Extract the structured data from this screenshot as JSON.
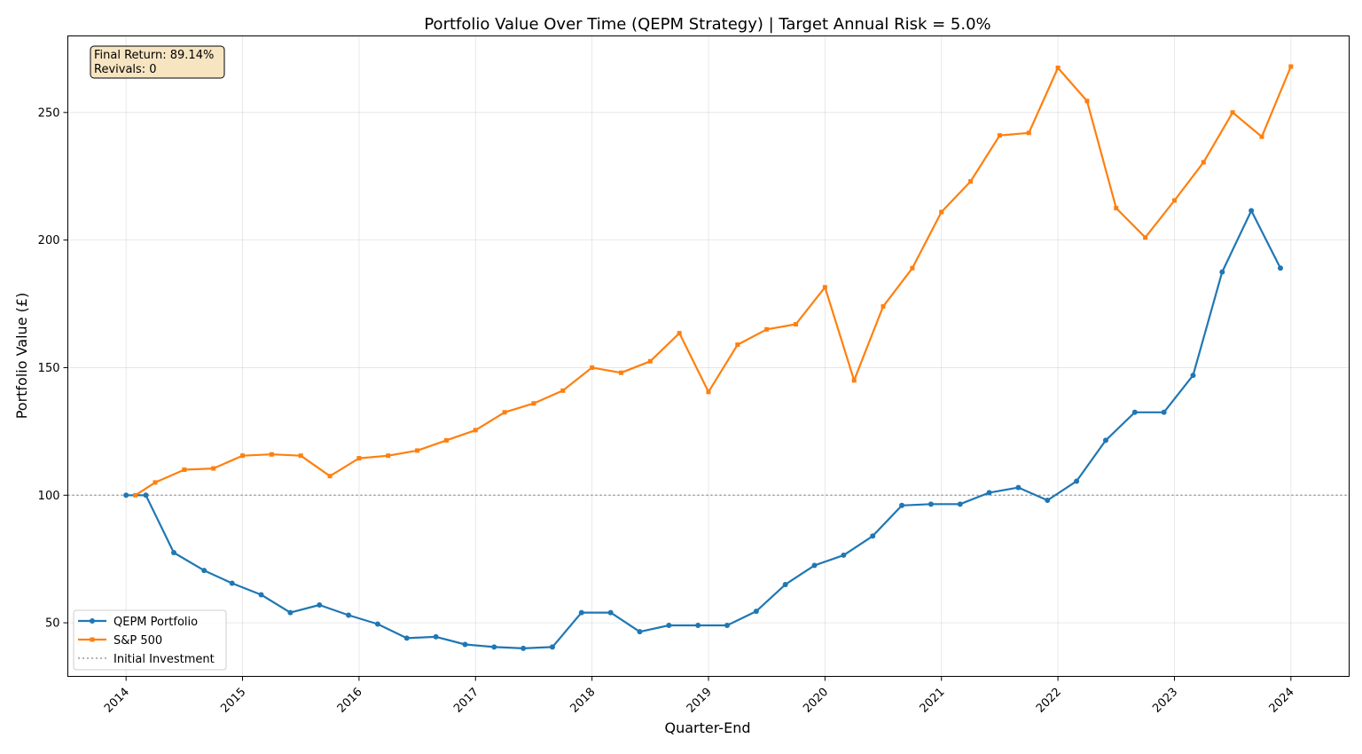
{
  "chart_data": {
    "type": "line",
    "title": "Portfolio Value Over Time (QEPM Strategy) | Target Annual Risk = 5.0%",
    "xlabel": "Quarter-End",
    "ylabel": "Portfolio Value (£)",
    "xlim": [
      2013.5,
      2024.5
    ],
    "ylim": [
      29,
      280
    ],
    "x_ticks": [
      2014,
      2015,
      2016,
      2017,
      2018,
      2019,
      2020,
      2021,
      2022,
      2023,
      2024
    ],
    "x_tick_labels": [
      "2014",
      "2015",
      "2016",
      "2017",
      "2018",
      "2019",
      "2020",
      "2021",
      "2022",
      "2023",
      "2024"
    ],
    "y_ticks": [
      50,
      100,
      150,
      200,
      250
    ],
    "y_tick_labels": [
      "50",
      "100",
      "150",
      "200",
      "250"
    ],
    "grid": true,
    "legend_position": "lower-left",
    "annotation": [
      "Final Return: 89.14%",
      "Revivals: 0"
    ],
    "reference_line": {
      "name": "Initial Investment",
      "y": 100,
      "color": "#999999"
    },
    "series": [
      {
        "name": "QEPM Portfolio",
        "color": "#1f77b4",
        "marker": "circle",
        "x": [
          2014.0,
          2014.17,
          2014.41,
          2014.67,
          2014.91,
          2015.16,
          2015.41,
          2015.66,
          2015.91,
          2016.16,
          2016.41,
          2016.66,
          2016.91,
          2017.16,
          2017.41,
          2017.66,
          2017.91,
          2018.16,
          2018.41,
          2018.66,
          2018.91,
          2019.16,
          2019.41,
          2019.66,
          2019.91,
          2020.16,
          2020.41,
          2020.66,
          2020.91,
          2021.16,
          2021.41,
          2021.66,
          2021.91,
          2022.16,
          2022.41,
          2022.66,
          2022.91,
          2023.16,
          2023.41,
          2023.66,
          2023.91
        ],
        "y": [
          100,
          100,
          77.5,
          70.5,
          65.5,
          61,
          54,
          57,
          53,
          49.5,
          44,
          44.5,
          41.5,
          40.5,
          40,
          40.5,
          54,
          54,
          46.5,
          49,
          49,
          49,
          54.5,
          65,
          72.5,
          76.5,
          84,
          96,
          96.5,
          96.5,
          101,
          103,
          98,
          105.5,
          121.5,
          132.5,
          132.5,
          147,
          187.5,
          211.5,
          189
        ]
      },
      {
        "name": "S&P 500",
        "color": "#ff7f0e",
        "marker": "square",
        "x": [
          2014.08,
          2014.25,
          2014.5,
          2014.75,
          2015.0,
          2015.25,
          2015.5,
          2015.75,
          2016.0,
          2016.25,
          2016.5,
          2016.75,
          2017.0,
          2017.25,
          2017.5,
          2017.75,
          2018.0,
          2018.25,
          2018.5,
          2018.75,
          2019.0,
          2019.25,
          2019.5,
          2019.75,
          2020.0,
          2020.25,
          2020.5,
          2020.75,
          2021.0,
          2021.25,
          2021.5,
          2021.75,
          2022.0,
          2022.25,
          2022.5,
          2022.75,
          2023.0,
          2023.25,
          2023.5,
          2023.75,
          2024.0
        ],
        "y": [
          100,
          105,
          110,
          110.5,
          115.5,
          116,
          115.5,
          107.5,
          114.5,
          115.5,
          117.5,
          121.5,
          125.5,
          132.5,
          136,
          141,
          150,
          148,
          152.5,
          163.5,
          140.5,
          159,
          165,
          167,
          181.5,
          145,
          174,
          189,
          211,
          223,
          241,
          242,
          267.5,
          254.5,
          212.5,
          201,
          215.5,
          230.5,
          250,
          240.5,
          268
        ]
      }
    ]
  }
}
